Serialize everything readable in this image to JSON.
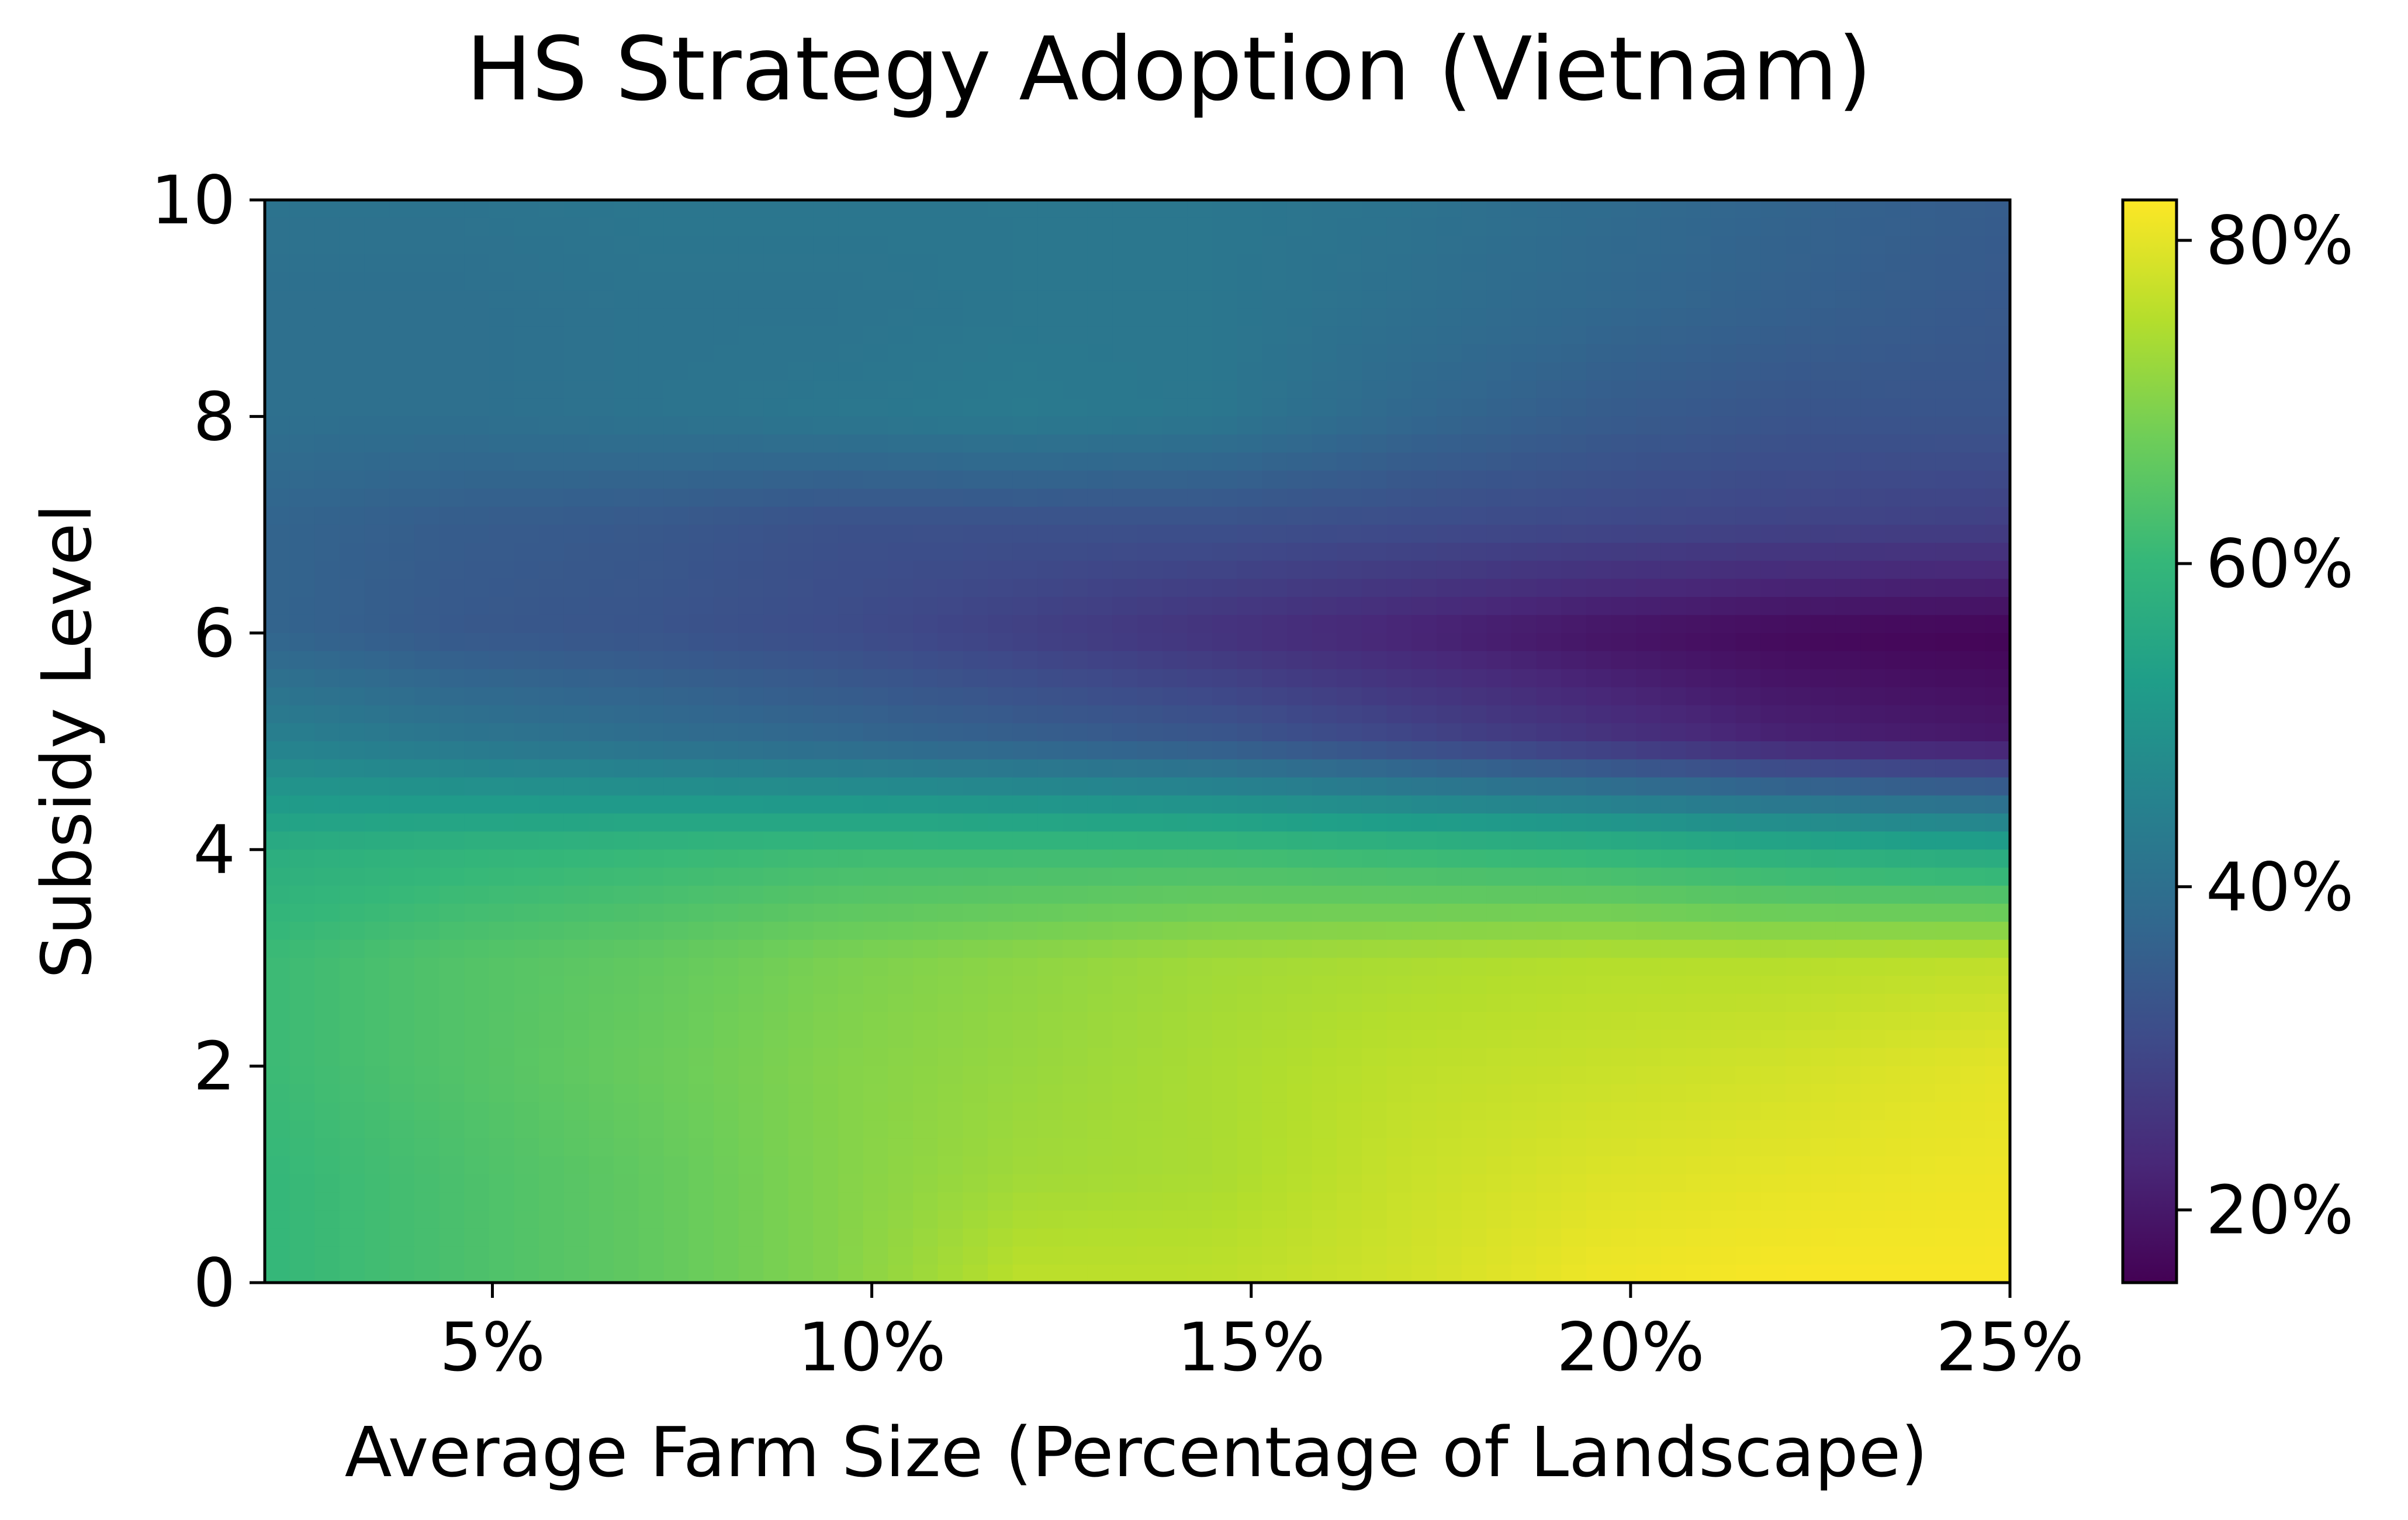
{
  "chart_data": {
    "type": "heatmap",
    "title": "HS Strategy Adoption (Vietnam)",
    "xlabel": "Average Farm Size (Percentage of Landscape)",
    "ylabel": "Subsidy Level",
    "xlim": [
      2,
      25
    ],
    "ylim": [
      0,
      10
    ],
    "x_ticks": [
      {
        "value": 5,
        "label": "5%"
      },
      {
        "value": 10,
        "label": "10%"
      },
      {
        "value": 15,
        "label": "15%"
      },
      {
        "value": 20,
        "label": "20%"
      },
      {
        "value": 25,
        "label": "25%"
      }
    ],
    "y_ticks": [
      {
        "value": 0,
        "label": "0"
      },
      {
        "value": 2,
        "label": "2"
      },
      {
        "value": 4,
        "label": "4"
      },
      {
        "value": 6,
        "label": "6"
      },
      {
        "value": 8,
        "label": "8"
      },
      {
        "value": 10,
        "label": "10"
      }
    ],
    "colorbar": {
      "colormap": "viridis",
      "range": [
        15.5,
        82.5
      ],
      "ticks": [
        {
          "value": 20,
          "label": "20%"
        },
        {
          "value": 40,
          "label": "40%"
        },
        {
          "value": 60,
          "label": "60%"
        },
        {
          "value": 80,
          "label": "80%"
        }
      ]
    },
    "grid": false,
    "x": [
      2,
      4.5,
      7,
      9.5,
      12,
      14.5,
      17,
      19.5,
      22,
      25
    ],
    "y": [
      0,
      1,
      2,
      3,
      4,
      5,
      6,
      7,
      8,
      9,
      10
    ],
    "z": [
      [
        60,
        63,
        66,
        70,
        76,
        76,
        78,
        81,
        82,
        82
      ],
      [
        60,
        63,
        66,
        70,
        73,
        74,
        77,
        79,
        80,
        81
      ],
      [
        61,
        64,
        67,
        70,
        72,
        74,
        76,
        77,
        78,
        80
      ],
      [
        61,
        64,
        66,
        69,
        71,
        73,
        74,
        75,
        75,
        76
      ],
      [
        57,
        59,
        60,
        61,
        61,
        61,
        60,
        59,
        57,
        55
      ],
      [
        45,
        42,
        40,
        38,
        36,
        34,
        30,
        26,
        22,
        20
      ],
      [
        37,
        34,
        33,
        31,
        28,
        25,
        22,
        19,
        17,
        16
      ],
      [
        37,
        35,
        34,
        32,
        32,
        32,
        31,
        30,
        29,
        28
      ],
      [
        40,
        40,
        41,
        42,
        43,
        42,
        38,
        35,
        33,
        33
      ],
      [
        40,
        40,
        41,
        41,
        42,
        42,
        40,
        38,
        36,
        34
      ],
      [
        41,
        41,
        42,
        42,
        42,
        42,
        41,
        39,
        37,
        35
      ]
    ]
  }
}
